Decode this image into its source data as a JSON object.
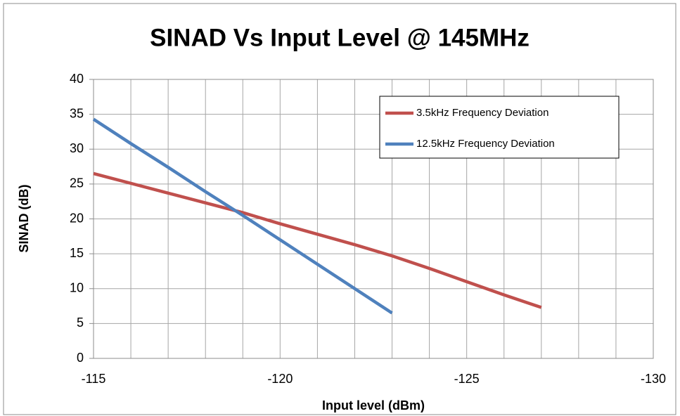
{
  "chart_data": {
    "type": "line",
    "title": "SINAD Vs Input Level @ 145MHz",
    "xlabel": "Input level (dBm)",
    "ylabel": "SINAD (dB)",
    "x": [
      -115,
      -116,
      -117,
      -118,
      -119,
      -120,
      -121,
      -122,
      -123,
      -124,
      -125,
      -126,
      -127
    ],
    "series": [
      {
        "name": "3.5kHz Frequency Deviation",
        "color": "#c0504d",
        "values": [
          26.5,
          25.1,
          23.7,
          22.3,
          20.9,
          19.3,
          17.8,
          16.3,
          14.7,
          12.9,
          11.0,
          9.1,
          7.3
        ]
      },
      {
        "name": "12.5kHz Frequency Deviation",
        "color": "#4f81bd",
        "values": [
          34.3,
          30.8,
          27.4,
          23.9,
          20.5,
          17.0,
          13.5,
          10.0,
          6.5,
          null,
          null,
          null,
          null
        ]
      }
    ],
    "xlim": [
      -115,
      -130
    ],
    "xticks": [
      -115,
      -120,
      -125,
      -130
    ],
    "xminorticks": [
      -116,
      -117,
      -118,
      -119,
      -121,
      -122,
      -123,
      -124,
      -126,
      -127,
      -128,
      -129
    ],
    "ylim": [
      0,
      40
    ],
    "yticks": [
      0,
      5,
      10,
      15,
      20,
      25,
      30,
      35,
      40
    ],
    "grid": true,
    "legend": "upper right"
  }
}
